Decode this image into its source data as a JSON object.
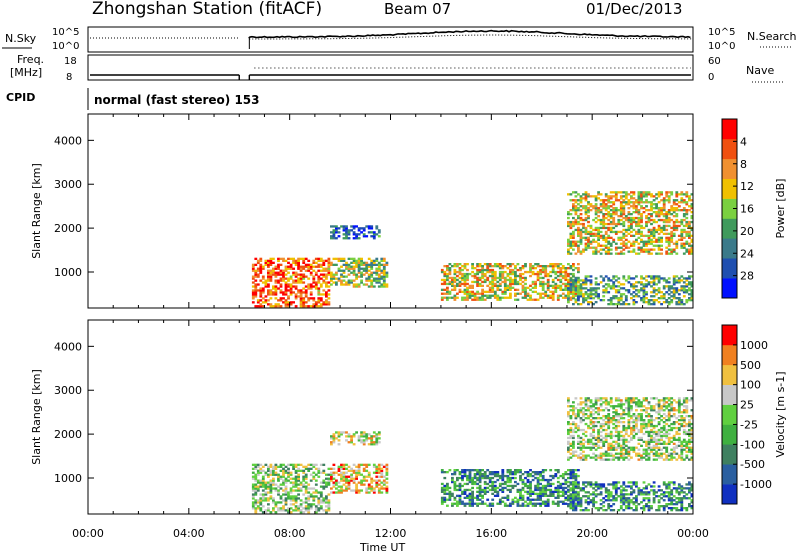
{
  "header": {
    "title": "Zhongshan Station (fitACF)",
    "beam": "Beam 07",
    "date": "01/Dec/2013"
  },
  "aux_panel": {
    "nsky_label": "N.Sky",
    "nsky_tick_top": "10^5",
    "nsky_tick_bottom": "10^0",
    "nsearch_label": "N.Search",
    "nsearch_tick_top": "10^5",
    "nsearch_tick_bottom": "10^0",
    "freq_label_1": "Freq.",
    "freq_label_2": "[MHz]",
    "freq_tick_top": "18",
    "freq_tick_bottom": "8",
    "nave_label": "Nave",
    "nave_tick_top": "60",
    "nave_tick_bottom": "0",
    "cpid_label": "CPID",
    "cpid_text": "normal (fast stereo) 153"
  },
  "x_axis": {
    "ticks": [
      "00:00",
      "04:00",
      "08:00",
      "12:00",
      "16:00",
      "20:00",
      "00:00"
    ],
    "label": "Time UT"
  },
  "chart_data": [
    {
      "type": "heatmap",
      "panel": "power",
      "ylabel": "Slant Range [km]",
      "yticks": [
        1000,
        2000,
        3000,
        4000
      ],
      "ylim": [
        180,
        4600
      ],
      "xlim_hours": [
        0,
        24
      ],
      "colorbar": {
        "label": "Power [dB]",
        "tick_labels": [
          "4",
          "8",
          "12",
          "16",
          "20",
          "24",
          "28"
        ],
        "colors": [
          "#0010ff",
          "#1f4fb0",
          "#3a7a8a",
          "#3f9a5c",
          "#7ad040",
          "#f0c000",
          "#f09030",
          "#f05010",
          "#ff0000"
        ]
      },
      "echo_regions": [
        {
          "t0": 6.5,
          "t1": 9.5,
          "r0": 200,
          "r1": 1300,
          "level": 0.8
        },
        {
          "t0": 9.6,
          "t1": 11.5,
          "r0": 1750,
          "r1": 2050,
          "level": 0.2
        },
        {
          "t0": 9.6,
          "t1": 11.8,
          "r0": 650,
          "r1": 1300,
          "level": 0.5
        },
        {
          "t0": 14.0,
          "t1": 19.5,
          "r0": 350,
          "r1": 1200,
          "level": 0.6
        },
        {
          "t0": 19.0,
          "t1": 24.0,
          "r0": 1400,
          "r1": 2800,
          "level": 0.6
        },
        {
          "t0": 19.0,
          "t1": 24.0,
          "r0": 250,
          "r1": 900,
          "level": 0.4
        }
      ]
    },
    {
      "type": "heatmap",
      "panel": "velocity",
      "ylabel": "Slant Range [km]",
      "yticks": [
        1000,
        2000,
        3000,
        4000
      ],
      "ylim": [
        180,
        4600
      ],
      "xlim_hours": [
        0,
        24
      ],
      "colorbar": {
        "label": "Velocity [m s-1]",
        "tick_labels": [
          "1000",
          "500",
          "100",
          "25",
          "-25",
          "-100",
          "-500",
          "-1000"
        ],
        "colors": [
          "#1030c0",
          "#2a5fa0",
          "#3f8060",
          "#3fb040",
          "#60d040",
          "#c8c8c8",
          "#f0c040",
          "#f08020",
          "#ff0000"
        ]
      },
      "echo_regions": [
        {
          "t0": 6.5,
          "t1": 9.5,
          "r0": 200,
          "r1": 1300,
          "level": 0.5
        },
        {
          "t0": 9.6,
          "t1": 11.5,
          "r0": 1750,
          "r1": 2050,
          "level": 0.6
        },
        {
          "t0": 9.6,
          "t1": 11.8,
          "r0": 650,
          "r1": 1300,
          "level": 0.7
        },
        {
          "t0": 14.0,
          "t1": 19.5,
          "r0": 350,
          "r1": 1200,
          "level": 0.3
        },
        {
          "t0": 19.0,
          "t1": 24.0,
          "r0": 1400,
          "r1": 2800,
          "level": 0.55
        },
        {
          "t0": 19.0,
          "t1": 24.0,
          "r0": 250,
          "r1": 900,
          "level": 0.3
        }
      ]
    }
  ]
}
